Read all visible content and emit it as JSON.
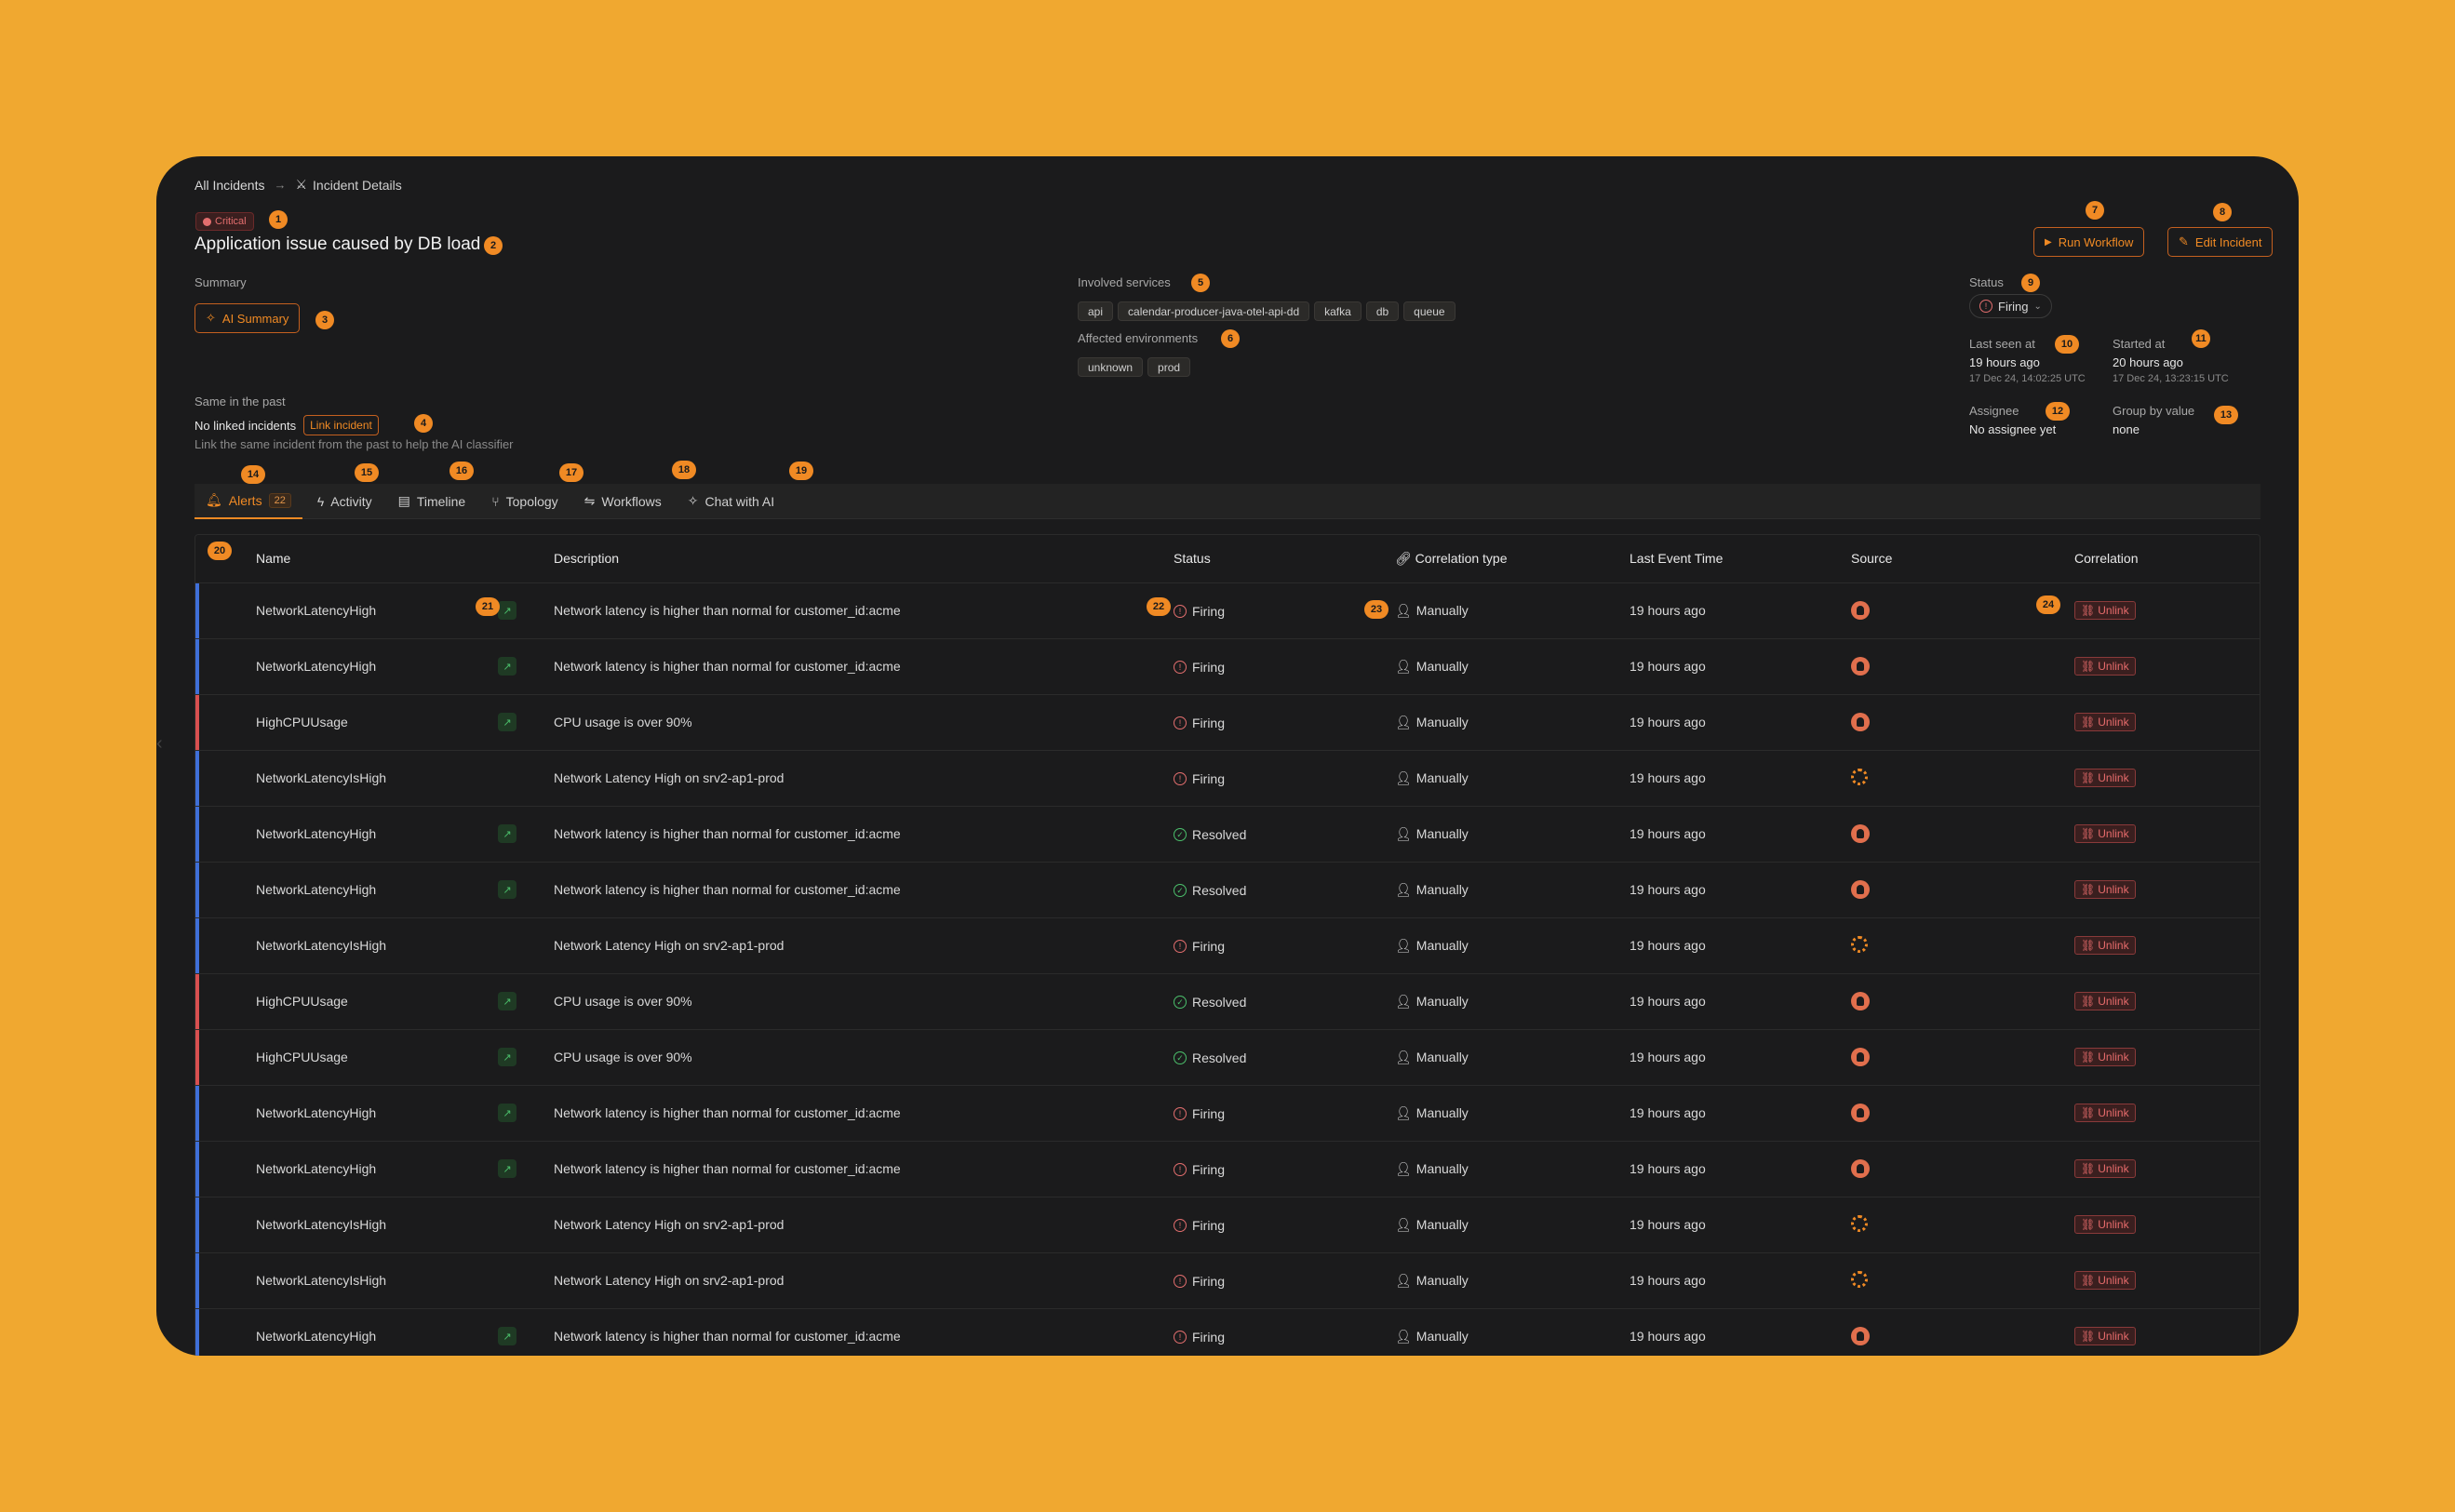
{
  "breadcrumb": {
    "root": "All Incidents",
    "current": "Incident Details"
  },
  "incident": {
    "severity": "Critical",
    "title": "Application issue caused by DB load"
  },
  "summary": {
    "label": "Summary",
    "ai_button": "AI Summary"
  },
  "past": {
    "label": "Same in the past",
    "none_text": "No linked incidents",
    "link_button": "Link incident",
    "hint": "Link the same incident from the past to help the AI classifier"
  },
  "services": {
    "label": "Involved services",
    "items": [
      "api",
      "calendar-producer-java-otel-api-dd",
      "kafka",
      "db",
      "queue"
    ]
  },
  "environments": {
    "label": "Affected environments",
    "items": [
      "unknown",
      "prod"
    ]
  },
  "actions": {
    "run_workflow": "Run Workflow",
    "edit_incident": "Edit Incident"
  },
  "status": {
    "label": "Status",
    "value": "Firing"
  },
  "last_seen": {
    "label": "Last seen at",
    "value": "19 hours ago",
    "exact": "17 Dec 24, 14:02:25 UTC"
  },
  "started": {
    "label": "Started at",
    "value": "20 hours ago",
    "exact": "17 Dec 24, 13:23:15 UTC"
  },
  "assignee": {
    "label": "Assignee",
    "value": "No assignee yet"
  },
  "group_by": {
    "label": "Group by value",
    "value": "none"
  },
  "tabs": [
    {
      "label": "Alerts",
      "count": "22"
    },
    {
      "label": "Activity"
    },
    {
      "label": "Timeline"
    },
    {
      "label": "Topology"
    },
    {
      "label": "Workflows"
    },
    {
      "label": "Chat with AI"
    }
  ],
  "markers": [
    "1",
    "2",
    "3",
    "4",
    "5",
    "6",
    "7",
    "8",
    "9",
    "10",
    "11",
    "12",
    "13",
    "14",
    "15",
    "16",
    "17",
    "18",
    "19",
    "20",
    "21",
    "22",
    "23",
    "24"
  ],
  "table": {
    "headers": [
      "Name",
      "Description",
      "Status",
      "Correlation type",
      "Last Event Time",
      "Source",
      "Correlation"
    ],
    "unlink_label": "Unlink",
    "rows": [
      {
        "name": "NetworkLatencyHigh",
        "desc": "Network latency is higher than normal for customer_id:acme",
        "status": "Firing",
        "corr": "Manually",
        "time": "19 hours ago",
        "source": "sentry-icon",
        "bar": "#3f6fd8",
        "ext": true
      },
      {
        "name": "NetworkLatencyHigh",
        "desc": "Network latency is higher than normal for customer_id:acme",
        "status": "Firing",
        "corr": "Manually",
        "time": "19 hours ago",
        "source": "sentry-icon",
        "bar": "#3f6fd8",
        "ext": true
      },
      {
        "name": "HighCPUUsage",
        "desc": "CPU usage is over 90%",
        "status": "Firing",
        "corr": "Manually",
        "time": "19 hours ago",
        "source": "sentry-icon",
        "bar": "#d85050",
        "ext": true
      },
      {
        "name": "NetworkLatencyIsHigh",
        "desc": "Network Latency High on srv2-ap1-prod",
        "status": "Firing",
        "corr": "Manually",
        "time": "19 hours ago",
        "source": "grafana-icon",
        "bar": "#3f6fd8",
        "ext": false
      },
      {
        "name": "NetworkLatencyHigh",
        "desc": "Network latency is higher than normal for customer_id:acme",
        "status": "Resolved",
        "corr": "Manually",
        "time": "19 hours ago",
        "source": "sentry-icon",
        "bar": "#3f6fd8",
        "ext": true
      },
      {
        "name": "NetworkLatencyHigh",
        "desc": "Network latency is higher than normal for customer_id:acme",
        "status": "Resolved",
        "corr": "Manually",
        "time": "19 hours ago",
        "source": "sentry-icon",
        "bar": "#3f6fd8",
        "ext": true
      },
      {
        "name": "NetworkLatencyIsHigh",
        "desc": "Network Latency High on srv2-ap1-prod",
        "status": "Firing",
        "corr": "Manually",
        "time": "19 hours ago",
        "source": "grafana-icon",
        "bar": "#3f6fd8",
        "ext": false
      },
      {
        "name": "HighCPUUsage",
        "desc": "CPU usage is over 90%",
        "status": "Resolved",
        "corr": "Manually",
        "time": "19 hours ago",
        "source": "sentry-icon",
        "bar": "#d85050",
        "ext": true
      },
      {
        "name": "HighCPUUsage",
        "desc": "CPU usage is over 90%",
        "status": "Resolved",
        "corr": "Manually",
        "time": "19 hours ago",
        "source": "sentry-icon",
        "bar": "#d85050",
        "ext": true
      },
      {
        "name": "NetworkLatencyHigh",
        "desc": "Network latency is higher than normal for customer_id:acme",
        "status": "Firing",
        "corr": "Manually",
        "time": "19 hours ago",
        "source": "sentry-icon",
        "bar": "#3f6fd8",
        "ext": true
      },
      {
        "name": "NetworkLatencyHigh",
        "desc": "Network latency is higher than normal for customer_id:acme",
        "status": "Firing",
        "corr": "Manually",
        "time": "19 hours ago",
        "source": "sentry-icon",
        "bar": "#3f6fd8",
        "ext": true
      },
      {
        "name": "NetworkLatencyIsHigh",
        "desc": "Network Latency High on srv2-ap1-prod",
        "status": "Firing",
        "corr": "Manually",
        "time": "19 hours ago",
        "source": "grafana-icon",
        "bar": "#3f6fd8",
        "ext": false
      },
      {
        "name": "NetworkLatencyIsHigh",
        "desc": "Network Latency High on srv2-ap1-prod",
        "status": "Firing",
        "corr": "Manually",
        "time": "19 hours ago",
        "source": "grafana-icon",
        "bar": "#3f6fd8",
        "ext": false
      },
      {
        "name": "NetworkLatencyHigh",
        "desc": "Network latency is higher than normal for customer_id:acme",
        "status": "Firing",
        "corr": "Manually",
        "time": "19 hours ago",
        "source": "sentry-icon",
        "bar": "#3f6fd8",
        "ext": true
      }
    ]
  },
  "colors": {
    "accent": "#F08A24",
    "background": "#F0A830",
    "panel": "#1b1b1c",
    "firing": "#e36e6e",
    "resolved": "#4bbf6b"
  }
}
